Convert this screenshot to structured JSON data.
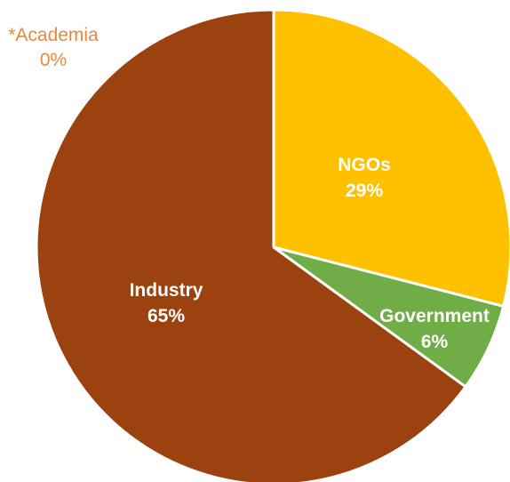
{
  "chart_data": {
    "type": "pie",
    "categories": [
      "NGOs",
      "Government",
      "Industry",
      "*Academia"
    ],
    "values": [
      29,
      6,
      65,
      0
    ],
    "labels": [
      "29%",
      "6%",
      "65%",
      "0%"
    ],
    "colors": [
      "#ffc000",
      "#70ad47",
      "#9c420e",
      "#e8893a"
    ],
    "title": "",
    "start_angle": "12 o'clock",
    "direction": "clockwise",
    "slice_border_color": "#ffffff",
    "legend": "none",
    "data_labels": "inside slices; *Academia outside top-left"
  }
}
